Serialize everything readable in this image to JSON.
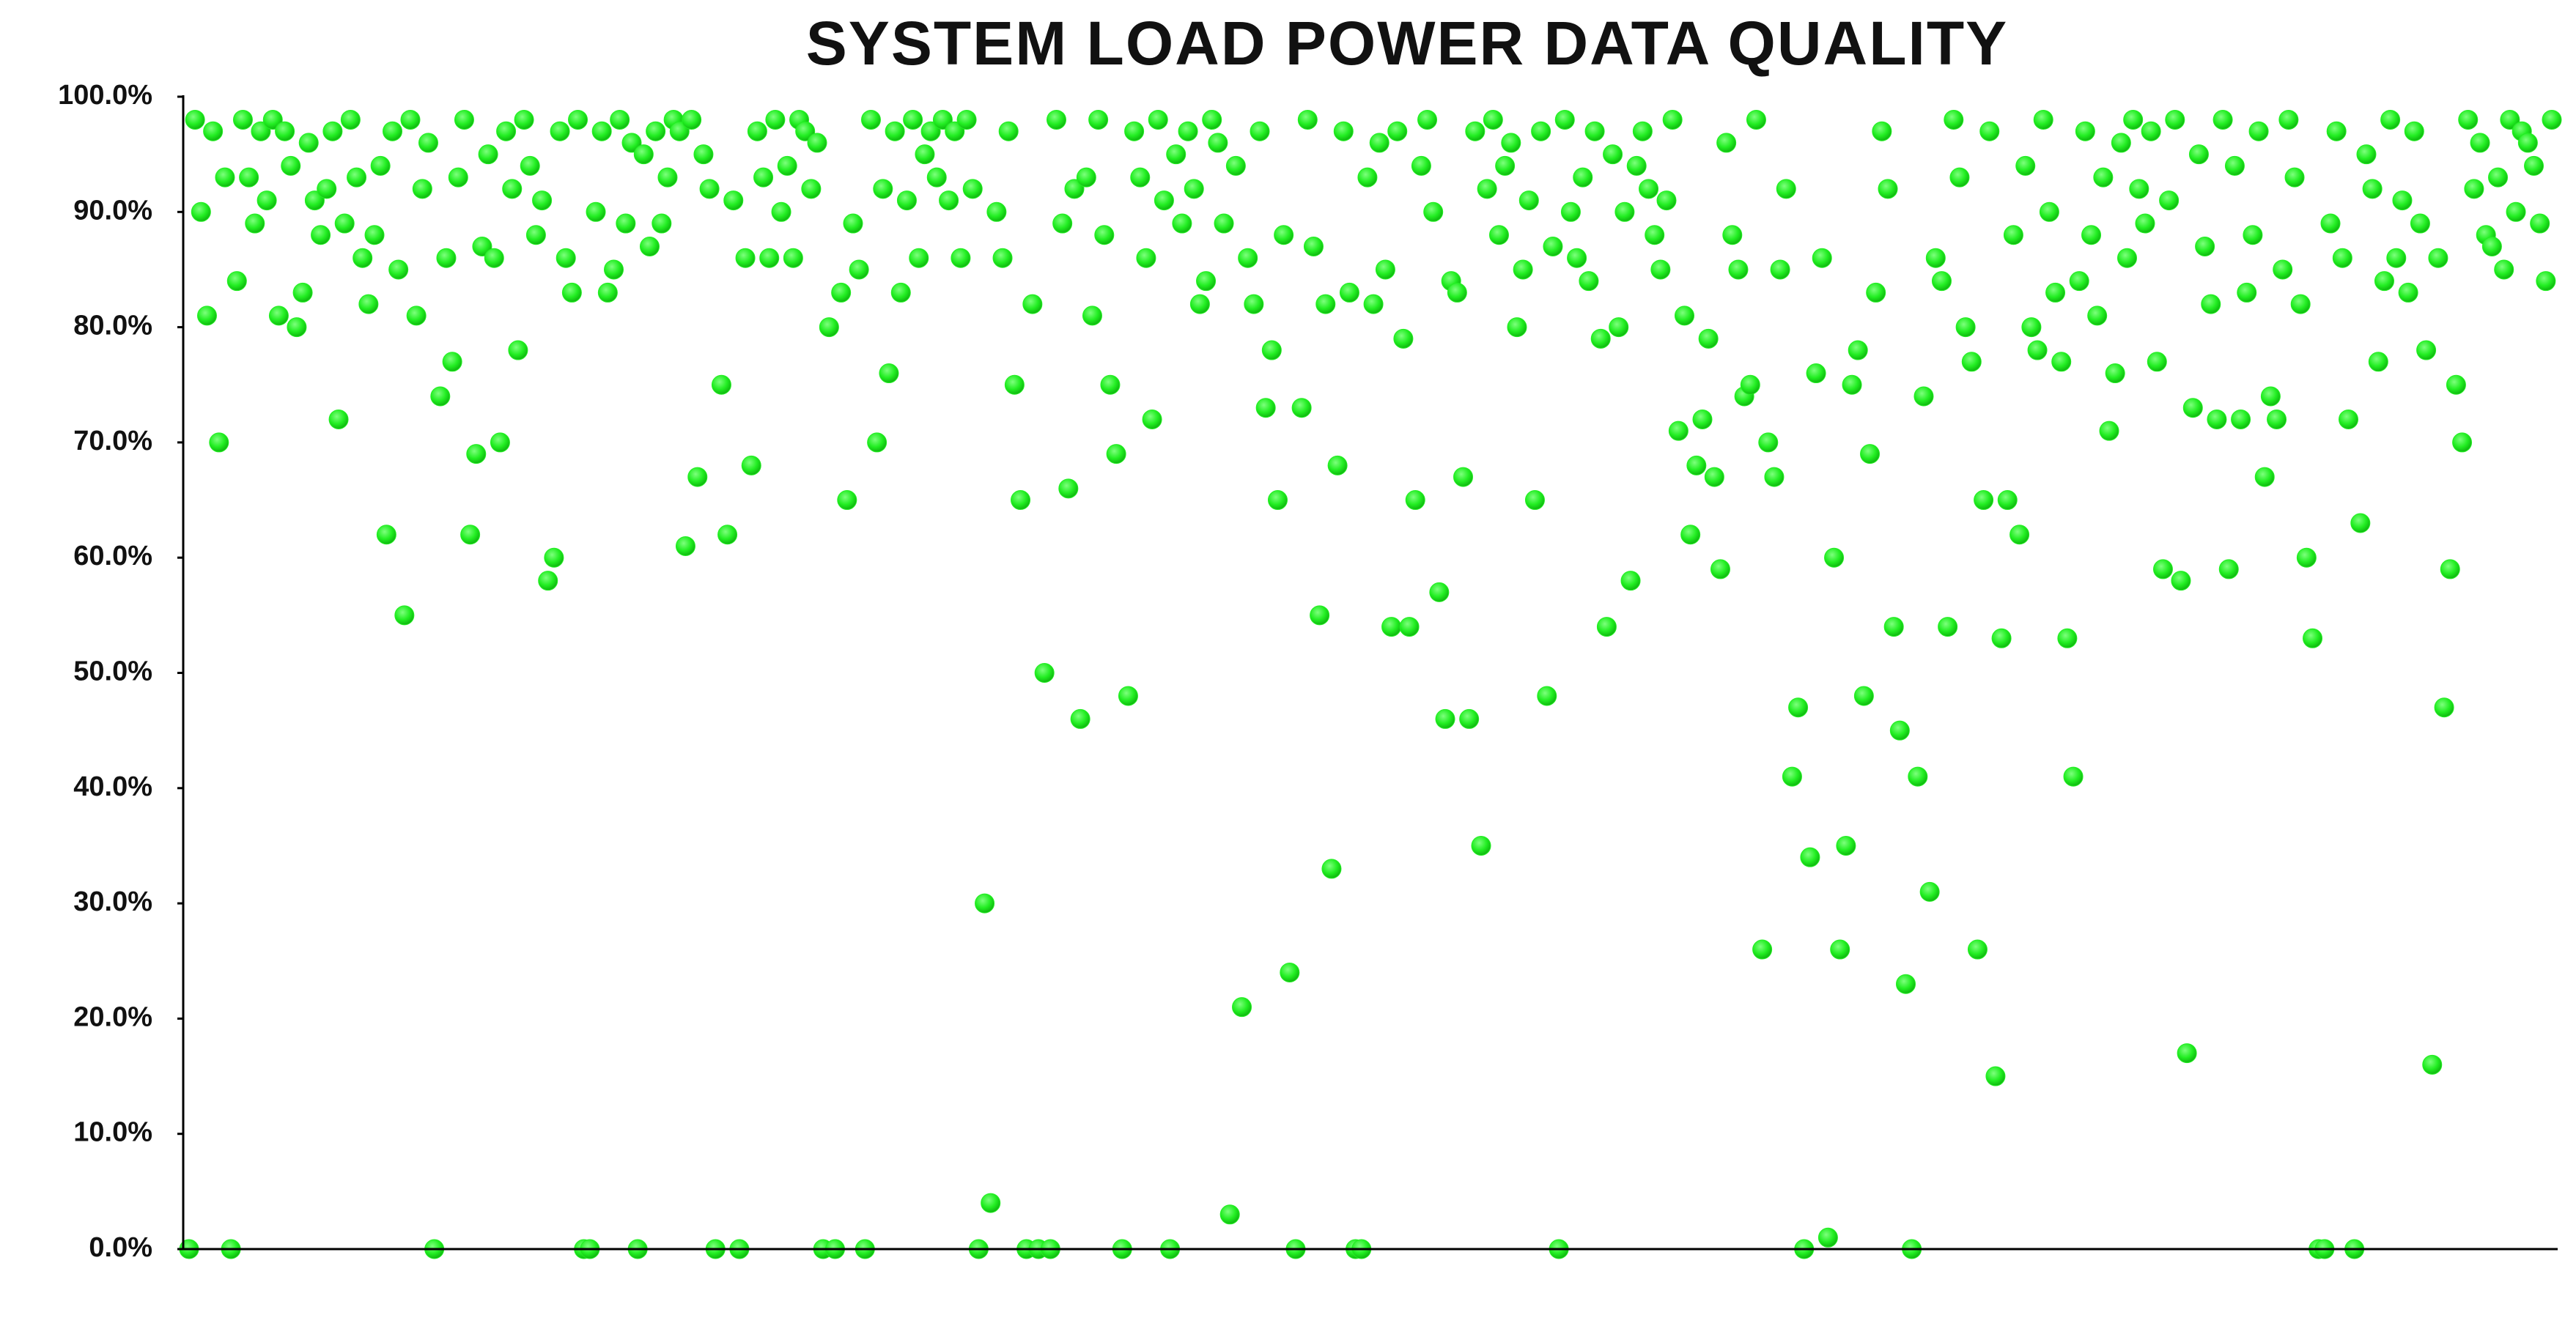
{
  "chart_data": {
    "type": "scatter",
    "title": "SYSTEM LOAD POWER DATA QUALITY",
    "color": "#22ee22",
    "ylim": [
      0,
      100
    ],
    "yticks": [
      {
        "value": 0,
        "label": "0.0%"
      },
      {
        "value": 10,
        "label": "10.0%"
      },
      {
        "value": 20,
        "label": "20.0%"
      },
      {
        "value": 30,
        "label": "30.0%"
      },
      {
        "value": 40,
        "label": "40.0%"
      },
      {
        "value": 50,
        "label": "50.0%"
      },
      {
        "value": 60,
        "label": "60.0%"
      },
      {
        "value": 70,
        "label": "70.0%"
      },
      {
        "value": 80,
        "label": "80.0%"
      },
      {
        "value": 90,
        "label": "90.0%"
      },
      {
        "value": 100,
        "label": "100.0%"
      }
    ],
    "grid": false,
    "values": [
      0,
      98,
      90,
      81,
      97,
      70,
      93,
      0,
      84,
      98,
      93,
      89,
      97,
      91,
      98,
      81,
      97,
      94,
      80,
      83,
      96,
      91,
      88,
      92,
      97,
      72,
      89,
      98,
      93,
      86,
      82,
      88,
      94,
      62,
      97,
      85,
      55,
      98,
      81,
      92,
      96,
      0,
      74,
      86,
      77,
      93,
      98,
      62,
      69,
      87,
      95,
      86,
      70,
      97,
      92,
      78,
      98,
      94,
      88,
      91,
      58,
      60,
      97,
      86,
      83,
      98,
      0,
      0,
      90,
      97,
      83,
      85,
      98,
      89,
      96,
      0,
      95,
      87,
      97,
      89,
      93,
      98,
      97,
      61,
      98,
      67,
      95,
      92,
      0,
      75,
      62,
      91,
      0,
      86,
      68,
      97,
      93,
      86,
      98,
      90,
      94,
      86,
      98,
      97,
      92,
      96,
      0,
      80,
      0,
      83,
      65,
      89,
      85,
      0,
      98,
      70,
      92,
      76,
      97,
      83,
      91,
      98,
      86,
      95,
      97,
      93,
      98,
      91,
      97,
      86,
      98,
      92,
      0,
      30,
      4,
      90,
      86,
      97,
      75,
      65,
      0,
      82,
      0,
      50,
      0,
      98,
      89,
      66,
      92,
      46,
      93,
      81,
      98,
      88,
      75,
      69,
      0,
      48,
      97,
      93,
      86,
      72,
      98,
      91,
      0,
      95,
      89,
      97,
      92,
      82,
      84,
      98,
      96,
      89,
      3,
      94,
      21,
      86,
      82,
      97,
      73,
      78,
      65,
      88,
      24,
      0,
      73,
      98,
      87,
      55,
      82,
      33,
      68,
      97,
      83,
      0,
      0,
      93,
      82,
      96,
      85,
      54,
      97,
      79,
      54,
      65,
      94,
      98,
      90,
      57,
      46,
      84,
      83,
      67,
      46,
      97,
      35,
      92,
      98,
      88,
      94,
      96,
      80,
      85,
      91,
      65,
      97,
      48,
      87,
      0,
      98,
      90,
      86,
      93,
      84,
      97,
      79,
      54,
      95,
      80,
      90,
      58,
      94,
      97,
      92,
      88,
      85,
      91,
      98,
      71,
      81,
      62,
      68,
      72,
      79,
      67,
      59,
      96,
      88,
      85,
      74,
      75,
      98,
      26,
      70,
      67,
      85,
      92,
      41,
      47,
      0,
      34,
      76,
      86,
      1,
      60,
      26,
      35,
      75,
      78,
      48,
      69,
      83,
      97,
      92,
      54,
      45,
      23,
      0,
      41,
      74,
      31,
      86,
      84,
      54,
      98,
      93,
      80,
      77,
      26,
      65,
      97,
      15,
      53,
      65,
      88,
      62,
      94,
      80,
      78,
      98,
      90,
      83,
      77,
      53,
      41,
      84,
      97,
      88,
      81,
      93,
      71,
      76,
      96,
      86,
      98,
      92,
      89,
      97,
      77,
      59,
      91,
      98,
      58,
      17,
      73,
      95,
      87,
      82,
      72,
      98,
      59,
      94,
      72,
      83,
      88,
      97,
      67,
      74,
      72,
      85,
      98,
      93,
      82,
      60,
      53,
      0,
      0,
      89,
      97,
      86,
      72,
      0,
      63,
      95,
      92,
      77,
      84,
      98,
      86,
      91,
      83,
      97,
      89,
      78,
      16,
      86,
      47,
      59,
      75,
      70,
      98,
      92,
      96,
      88,
      87,
      93,
      85,
      98,
      90,
      97,
      96,
      94,
      89,
      84,
      98
    ]
  }
}
